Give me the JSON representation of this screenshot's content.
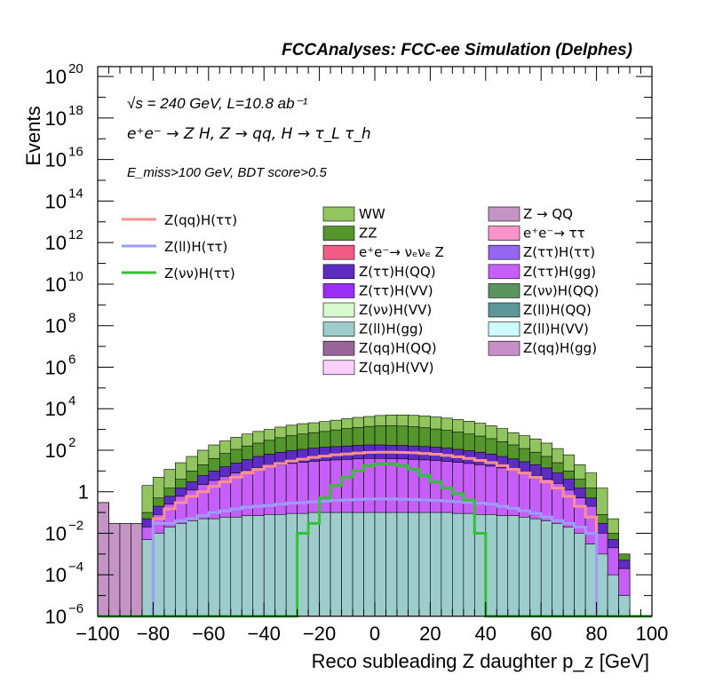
{
  "header": "FCCAnalyses: FCC-ee Simulation (Delphes)",
  "annotations": {
    "line1": "√s = 240 GeV, L=10.8 ab⁻¹",
    "line2": "e⁺e⁻ → Z H, Z → qq, H → τ_L τ_h",
    "line3": "E_miss>100 GeV, BDT score>0.5"
  },
  "chart_data": {
    "type": "histogram",
    "title": "",
    "xlabel": "Reco subleading Z daughter p_z [GeV]",
    "ylabel": "Events",
    "xlim": [
      -100,
      100
    ],
    "ylim": [
      1e-06,
      3e+20
    ],
    "log_y": true,
    "x_ticks": [
      -100,
      -80,
      -60,
      -40,
      -20,
      0,
      20,
      40,
      60,
      80,
      100
    ],
    "y_ticks": [
      "10^-6",
      "10^-4",
      "10^-2",
      "1",
      "10^2",
      "10^4",
      "10^6",
      "10^8",
      "10^10",
      "10^12",
      "10^14",
      "10^16",
      "10^18",
      "10^20"
    ],
    "bin_width": 4,
    "stack_envelopes": [
      {
        "name": "WW",
        "color": "#92c560",
        "values": [
          0.3,
          0.03,
          0.03,
          0.03,
          2,
          5,
          12,
          25,
          50,
          100,
          180,
          280,
          420,
          600,
          800,
          1000,
          1300,
          1600,
          1900,
          2100,
          2400,
          2800,
          3300,
          3800,
          4200,
          4700,
          5000,
          5000,
          4800,
          4500,
          4000,
          3500,
          3000,
          2500,
          2000,
          1500,
          1100,
          700,
          500,
          350,
          220,
          120,
          60,
          20,
          8,
          1.5,
          0.05,
          0.001,
          1e-06,
          1e-06
        ]
      },
      {
        "name": "ZZ",
        "color": "#55962c",
        "values": [
          0.3,
          0.03,
          0.03,
          0.03,
          0.1,
          0.5,
          1.5,
          4,
          10,
          20,
          40,
          70,
          110,
          160,
          220,
          300,
          400,
          500,
          600,
          700,
          800,
          950,
          1100,
          1250,
          1400,
          1500,
          1500,
          1450,
          1350,
          1200,
          1050,
          900,
          750,
          600,
          480,
          360,
          260,
          180,
          120,
          80,
          50,
          25,
          10,
          4,
          1.5,
          0.08,
          0.01,
          0.001,
          1e-06,
          1e-06
        ]
      },
      {
        "name": "Z(ττ)H(QQ)",
        "color": "#5d2dc3",
        "values": [
          0.3,
          0.03,
          0.03,
          0.03,
          0.05,
          0.2,
          0.6,
          1.5,
          3,
          6,
          10,
          16,
          24,
          35,
          50,
          65,
          80,
          95,
          110,
          125,
          140,
          150,
          160,
          170,
          180,
          180,
          175,
          170,
          160,
          150,
          140,
          125,
          110,
          95,
          80,
          65,
          50,
          38,
          28,
          20,
          14,
          8,
          4,
          1.5,
          0.5,
          0.03,
          0.005,
          0.0005,
          1e-06,
          1e-06
        ]
      },
      {
        "name": "Z(ττ)H(gg)",
        "color": "#c65ff8",
        "values": [
          0.3,
          0.03,
          0.03,
          0.03,
          0.02,
          0.08,
          0.25,
          0.6,
          1.2,
          2.2,
          3.5,
          5.5,
          8,
          11,
          14,
          17,
          20,
          23,
          26,
          29,
          32,
          34,
          36,
          38,
          40,
          40,
          39,
          38,
          36,
          34,
          32,
          29,
          26,
          23,
          20,
          17,
          14,
          11,
          8,
          6,
          4,
          2.5,
          1.2,
          0.5,
          0.2,
          0.01,
          0.002,
          0.0002,
          1e-06,
          1e-06
        ]
      },
      {
        "name": "Z(ll)H(gg)",
        "color": "#9ccdcc",
        "values": [
          0.3,
          0.03,
          0.03,
          0.03,
          0.005,
          0.01,
          0.02,
          0.03,
          0.04,
          0.05,
          0.05,
          0.06,
          0.06,
          0.07,
          0.07,
          0.08,
          0.08,
          0.09,
          0.09,
          0.1,
          0.1,
          0.1,
          0.1,
          0.1,
          0.1,
          0.1,
          0.1,
          0.1,
          0.1,
          0.1,
          0.1,
          0.1,
          0.09,
          0.09,
          0.08,
          0.08,
          0.07,
          0.07,
          0.06,
          0.05,
          0.04,
          0.03,
          0.02,
          0.01,
          0.003,
          0.001,
          0.0001,
          1e-05,
          1e-06,
          1e-06
        ]
      },
      {
        "name": "Z → QQ",
        "color": "#c494c4",
        "values": [
          0.3,
          0.03,
          0.03,
          0.03,
          1e-06,
          1e-06,
          1e-06,
          1e-06,
          1e-06,
          1e-06,
          1e-06,
          1e-06,
          1e-06,
          1e-06,
          1e-06,
          1e-06,
          1e-06,
          1e-06,
          1e-06,
          1e-06,
          1e-06,
          1e-06,
          1e-06,
          1e-06,
          1e-06,
          1e-06,
          1e-06,
          1e-06,
          1e-06,
          1e-06,
          1e-06,
          1e-06,
          1e-06,
          1e-06,
          1e-06,
          1e-06,
          1e-06,
          1e-06,
          1e-06,
          1e-06,
          1e-06,
          1e-06,
          1e-06,
          1e-06,
          1e-06,
          1e-06,
          1e-06,
          1e-06,
          1e-06,
          1e-06
        ]
      }
    ],
    "lines": [
      {
        "name": "Z(qq)H(ττ)",
        "color": "#fa918e",
        "values": [
          1e-06,
          1e-06,
          1e-06,
          1e-06,
          1e-06,
          0.05,
          0.15,
          0.3,
          0.6,
          1,
          1.8,
          3,
          5,
          8,
          12,
          17,
          23,
          30,
          37,
          45,
          52,
          60,
          66,
          72,
          78,
          80,
          80,
          78,
          75,
          70,
          64,
          56,
          48,
          40,
          32,
          25,
          18,
          12,
          8,
          5,
          3,
          1.5,
          0.6,
          0.2,
          0.06,
          1e-06,
          1e-06,
          1e-06,
          1e-06,
          1e-06
        ]
      },
      {
        "name": "Z(ll)H(ττ)",
        "color": "#9a9dfa",
        "values": [
          1e-06,
          1e-06,
          1e-06,
          1e-06,
          1e-06,
          0.03,
          0.03,
          0.04,
          0.05,
          0.07,
          0.1,
          0.12,
          0.15,
          0.18,
          0.2,
          0.22,
          0.25,
          0.28,
          0.3,
          0.33,
          0.35,
          0.38,
          0.4,
          0.42,
          0.45,
          0.45,
          0.45,
          0.43,
          0.42,
          0.4,
          0.38,
          0.36,
          0.33,
          0.3,
          0.28,
          0.25,
          0.2,
          0.16,
          0.12,
          0.09,
          0.06,
          0.04,
          0.03,
          0.02,
          0.01,
          1e-06,
          1e-06,
          1e-06,
          1e-06,
          1e-06
        ]
      },
      {
        "name": "Z(νν)H(ττ)",
        "color": "#33c033",
        "values": [
          1e-06,
          1e-06,
          1e-06,
          1e-06,
          1e-06,
          1e-06,
          1e-06,
          1e-06,
          1e-06,
          1e-06,
          1e-06,
          1e-06,
          1e-06,
          1e-06,
          1e-06,
          1e-06,
          1e-06,
          1e-06,
          0.01,
          0.03,
          0.5,
          2,
          5,
          10,
          18,
          22,
          22,
          18,
          12,
          6,
          3,
          1.5,
          0.8,
          0.4,
          0.01,
          1e-06,
          1e-06,
          1e-06,
          1e-06,
          1e-06,
          1e-06,
          1e-06,
          1e-06,
          1e-06,
          1e-06,
          1e-06,
          1e-06,
          1e-06,
          1e-06,
          1e-06
        ]
      }
    ],
    "legend": {
      "lines": [
        {
          "label": "Z(qq)H(ττ)",
          "color": "#fa918e"
        },
        {
          "label": "Z(ll)H(ττ)",
          "color": "#9a9dfa"
        },
        {
          "label": "Z(νν)H(ττ)",
          "color": "#33c033"
        }
      ],
      "col1": [
        {
          "label": "WW",
          "color": "#92c560"
        },
        {
          "label": "ZZ",
          "color": "#55962c"
        },
        {
          "label": "e⁺e⁻→ νₑνₑ Z",
          "color": "#f25b86"
        },
        {
          "label": "Z(ττ)H(QQ)",
          "color": "#5d2dc3"
        },
        {
          "label": "Z(ττ)H(VV)",
          "color": "#9b2ef5"
        },
        {
          "label": "Z(νν)H(VV)",
          "color": "#d8f8d0"
        },
        {
          "label": "Z(ll)H(gg)",
          "color": "#9ccdcc"
        },
        {
          "label": "Z(qq)H(QQ)",
          "color": "#9a6598"
        },
        {
          "label": "Z(qq)H(VV)",
          "color": "#fcd0fc"
        }
      ],
      "col2": [
        {
          "label": "Z → QQ",
          "color": "#c494c4"
        },
        {
          "label": "e⁺e⁻→ ττ",
          "color": "#fa94c8"
        },
        {
          "label": "Z(ττ)H(ττ)",
          "color": "#9466f4"
        },
        {
          "label": "Z(ττ)H(gg)",
          "color": "#c65ff8"
        },
        {
          "label": "Z(νν)H(QQ)",
          "color": "#5c9460"
        },
        {
          "label": "Z(ll)H(QQ)",
          "color": "#5d9696"
        },
        {
          "label": "Z(ll)H(VV)",
          "color": "#ccfcfc"
        },
        {
          "label": "Z(qq)H(gg)",
          "color": "#c88ec8"
        }
      ]
    }
  }
}
